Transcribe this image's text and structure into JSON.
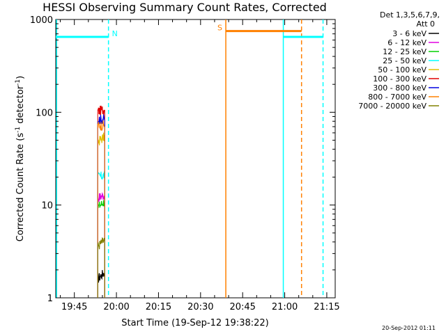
{
  "chart_data": {
    "type": "line",
    "title": "HESSI Observing Summary Count Rates, Corrected",
    "xlabel": "Start Time (19-Sep-12 19:38:22)",
    "ylabel_main": "Corrected Count Rate (s",
    "ylabel_sup1": "-1",
    "ylabel_mid": " detector",
    "ylabel_sup2": "-1",
    "ylabel_end": ")",
    "y_scale": "log",
    "ylim": [
      1,
      1000
    ],
    "xlim": [
      "19:38:22",
      "21:18:00"
    ],
    "x_ticks": [
      "19:45",
      "20:00",
      "20:15",
      "20:30",
      "20:45",
      "21:00",
      "21:15"
    ],
    "y_ticks": [
      "1",
      "10",
      "100",
      "1000"
    ],
    "legend_header": [
      "Det 1,3,5,6,7,9,",
      "Att 0"
    ],
    "legend_position": "right",
    "series": [
      {
        "name": "3 - 6 keV",
        "color": "#000000",
        "x": [
          "19:53:20",
          "19:54:40",
          "19:55:50"
        ],
        "values": [
          1.6,
          1.9,
          1.7
        ]
      },
      {
        "name": "6 - 12 keV",
        "color": "#e000e0",
        "x": [
          "19:53:20",
          "19:54:40",
          "19:55:50"
        ],
        "values": [
          12,
          12.5,
          13
        ]
      },
      {
        "name": "12 - 25 keV",
        "color": "#00d000",
        "x": [
          "19:53:20",
          "19:54:40",
          "19:55:50"
        ],
        "values": [
          9.5,
          10,
          11
        ]
      },
      {
        "name": "25 - 50 keV",
        "color": "#00ffff",
        "x": [
          "19:53:20",
          "19:54:40",
          "19:55:50"
        ],
        "values": [
          20,
          21,
          21
        ]
      },
      {
        "name": "50 - 100 keV",
        "color": "#e0c000",
        "x": [
          "19:53:20",
          "19:54:40",
          "19:55:50"
        ],
        "values": [
          48,
          52,
          55
        ]
      },
      {
        "name": "100 - 300 keV",
        "color": "#e00000",
        "x": [
          "19:53:20",
          "19:54:40",
          "19:55:50"
        ],
        "values": [
          103,
          106,
          108
        ]
      },
      {
        "name": "300 - 800 keV",
        "color": "#0000e0",
        "x": [
          "19:53:20",
          "19:54:40",
          "19:55:50"
        ],
        "values": [
          84,
          85,
          85
        ]
      },
      {
        "name": "800 - 7000 keV",
        "color": "#ff8000",
        "x": [
          "19:53:20",
          "19:54:40",
          "19:55:50"
        ],
        "values": [
          72,
          73,
          73
        ]
      },
      {
        "name": "7000 - 20000 keV",
        "color": "#808000",
        "x": [
          "19:53:20",
          "19:54:40",
          "19:55:50"
        ],
        "values": [
          3.6,
          3.9,
          4.2
        ]
      }
    ],
    "flags": [
      {
        "label": "N",
        "color": "#00ffff",
        "level": 650,
        "start": "19:38:22",
        "end": "19:57:10"
      },
      {
        "label": "",
        "color": "#00ffff",
        "level": 650,
        "start": "20:59:30",
        "end": "21:13:40"
      },
      {
        "label": "S",
        "color": "#ff8000",
        "level": 750,
        "start": "20:39:00",
        "end": "21:06:00"
      }
    ],
    "verticals": [
      {
        "time": "19:38:40",
        "color": "#00ffff",
        "style": "solid"
      },
      {
        "time": "19:57:10",
        "color": "#00ffff",
        "style": "dashed"
      },
      {
        "time": "20:39:00",
        "color": "#ff8000",
        "style": "solid"
      },
      {
        "time": "20:59:30",
        "color": "#00ffff",
        "style": "solid"
      },
      {
        "time": "21:06:00",
        "color": "#ff8000",
        "style": "dashed"
      },
      {
        "time": "21:13:40",
        "color": "#00ffff",
        "style": "dashed"
      }
    ],
    "footer_date": "20-Sep-2012 01:11"
  }
}
